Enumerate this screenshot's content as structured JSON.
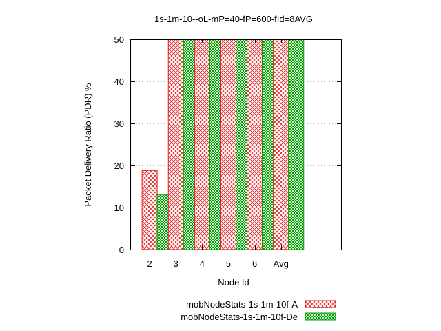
{
  "chart_data": {
    "type": "bar",
    "title": "1s-1m-10--oL-mP=40-fP=600-fId=8AVG",
    "xlabel": "Node Id",
    "ylabel": "Packet Delivery Ratio (PDR) %",
    "categories": [
      "2",
      "3",
      "4",
      "5",
      "6",
      "Avg"
    ],
    "ylim": [
      0,
      50
    ],
    "yticks": [
      "0",
      "10",
      "20",
      "30",
      "40",
      "50"
    ],
    "grid": true,
    "legend_position": "bottom-right",
    "series": [
      {
        "name": "mobNodeStats-1s-1m-10f-A",
        "color": "#e02020",
        "pattern": "crosshatch",
        "values": [
          18.8,
          50,
          50,
          50,
          50,
          50
        ]
      },
      {
        "name": "mobNodeStats-1s-1m-10f-De",
        "color": "#00a000",
        "pattern": "dense-check",
        "values": [
          13,
          50,
          50,
          50,
          50,
          50
        ]
      }
    ]
  }
}
